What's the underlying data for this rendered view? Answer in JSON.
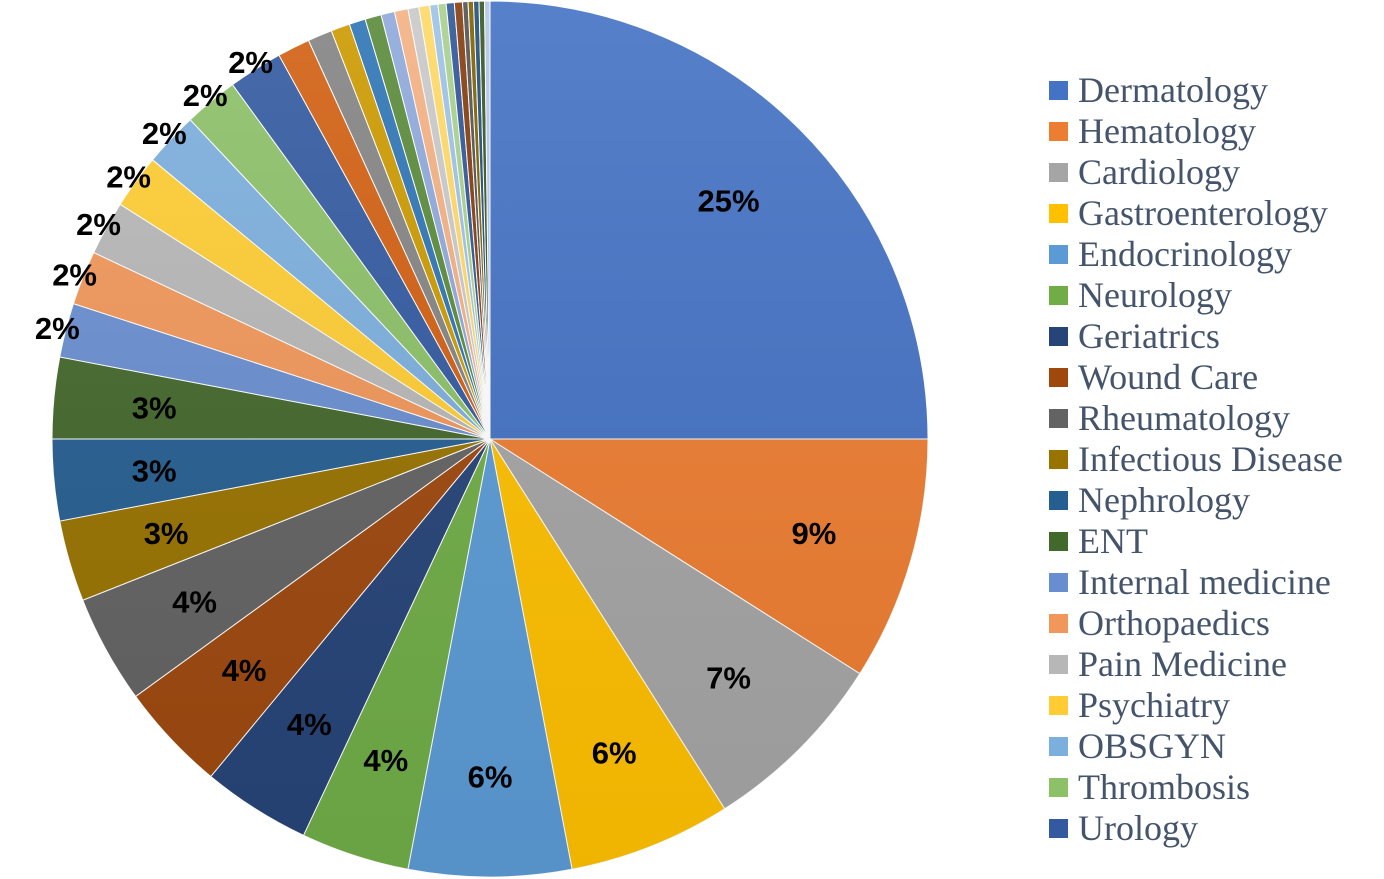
{
  "chart_data": {
    "type": "pie",
    "legend_position": "right",
    "series": [
      {
        "name": "Dermatology",
        "value": 25,
        "label": "25%",
        "color": "#4472c4"
      },
      {
        "name": "Hematology",
        "value": 9,
        "label": "9%",
        "color": "#ed7d31"
      },
      {
        "name": "Cardiology",
        "value": 7,
        "label": "7%",
        "color": "#a5a5a5"
      },
      {
        "name": "Gastroenterology",
        "value": 6,
        "label": "6%",
        "color": "#ffc000"
      },
      {
        "name": "Endocrinology",
        "value": 6,
        "label": "6%",
        "color": "#5b9bd5"
      },
      {
        "name": "Neurology",
        "value": 4,
        "label": "4%",
        "color": "#70ad47"
      },
      {
        "name": "Geriatrics",
        "value": 4,
        "label": "4%",
        "color": "#264478"
      },
      {
        "name": "Wound Care",
        "value": 4,
        "label": "4%",
        "color": "#9e480e"
      },
      {
        "name": "Rheumatology",
        "value": 4,
        "label": "4%",
        "color": "#636363"
      },
      {
        "name": "Infectious Disease",
        "value": 3,
        "label": "3%",
        "color": "#997300"
      },
      {
        "name": "Nephrology",
        "value": 3,
        "label": "3%",
        "color": "#255e91"
      },
      {
        "name": "ENT",
        "value": 3,
        "label": "3%",
        "color": "#43682b"
      },
      {
        "name": "Internal medicine",
        "value": 2,
        "label": "2%",
        "color": "#698ed0"
      },
      {
        "name": "Orthopaedics",
        "value": 2,
        "label": "2%",
        "color": "#f1975a"
      },
      {
        "name": "Pain Medicine",
        "value": 2,
        "label": "2%",
        "color": "#b7b7b7"
      },
      {
        "name": "Psychiatry",
        "value": 2,
        "label": "2%",
        "color": "#ffcd33"
      },
      {
        "name": "OBSGYN",
        "value": 2,
        "label": "2%",
        "color": "#7cafdd"
      },
      {
        "name": "Thrombosis",
        "value": 2,
        "label": "2%",
        "color": "#8cc168"
      },
      {
        "name": "Urology",
        "value": 2,
        "label": "2%",
        "color": "#335aa1"
      }
    ],
    "unlabeled_small_slices": [
      {
        "value": 1.2,
        "color": "#d26012"
      },
      {
        "value": 0.9,
        "color": "#848484"
      },
      {
        "value": 0.7,
        "color": "#cc9a00"
      },
      {
        "value": 0.6,
        "color": "#2e75b6"
      },
      {
        "value": 0.6,
        "color": "#5a8a3a"
      },
      {
        "value": 0.5,
        "color": "#8fa9db"
      },
      {
        "value": 0.5,
        "color": "#f4b183"
      },
      {
        "value": 0.4,
        "color": "#c9c9c9"
      },
      {
        "value": 0.4,
        "color": "#ffd966"
      },
      {
        "value": 0.3,
        "color": "#9dc3e6"
      },
      {
        "value": 0.3,
        "color": "#a9d18e"
      },
      {
        "value": 0.3,
        "color": "#2f5597"
      },
      {
        "value": 0.3,
        "color": "#843c0c"
      },
      {
        "value": 0.2,
        "color": "#525252"
      },
      {
        "value": 0.2,
        "color": "#7f6000"
      },
      {
        "value": 0.2,
        "color": "#1f4e79"
      },
      {
        "value": 0.2,
        "color": "#375623"
      },
      {
        "value": 0.2,
        "color": "#b4c7e7"
      }
    ]
  }
}
